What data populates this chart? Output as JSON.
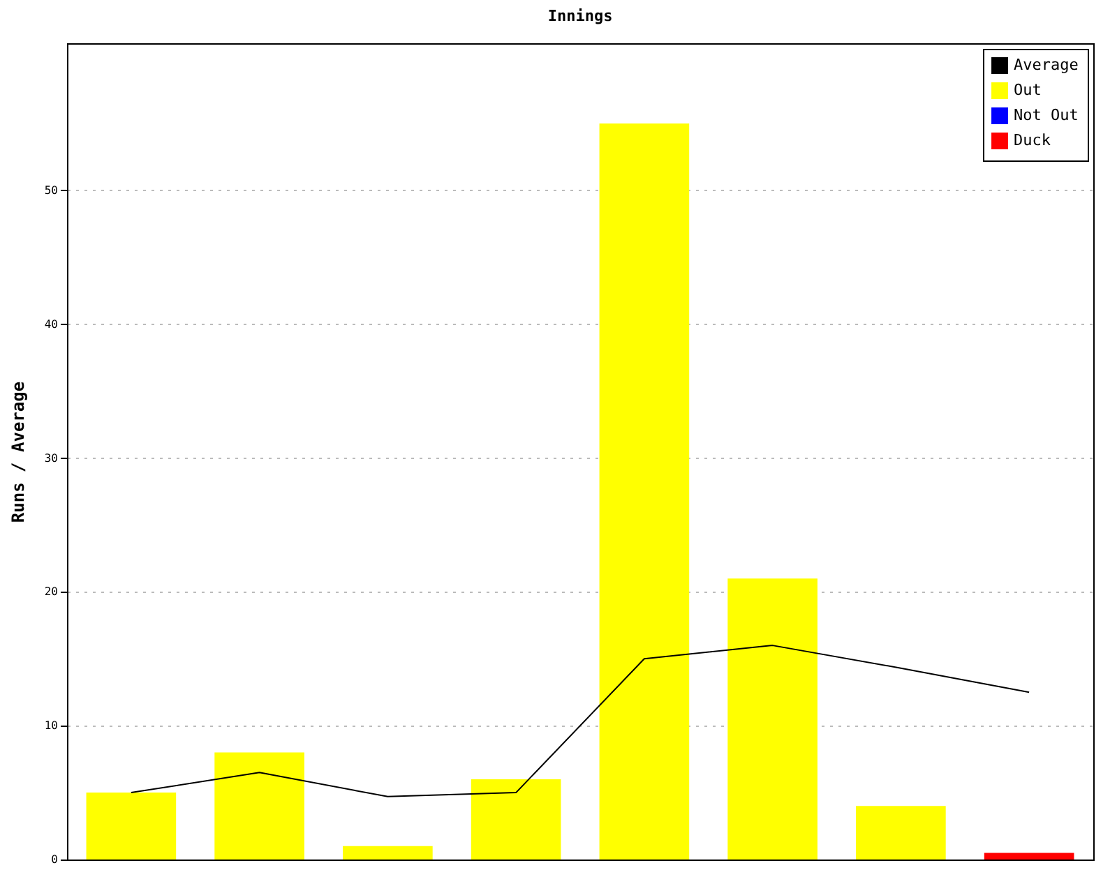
{
  "chart_data": {
    "type": "bar",
    "title": "Innings",
    "ylabel": "Runs / Average",
    "categories": [
      null,
      null,
      null,
      null,
      null,
      null,
      null,
      null
    ],
    "series": [
      {
        "name": "Average",
        "type": "line",
        "color": "#000000",
        "values": [
          5,
          6.5,
          4.7,
          5,
          15,
          16,
          14.3,
          12.5
        ]
      },
      {
        "name": "Out",
        "color": "#ffff00",
        "values": [
          5,
          8,
          1,
          6,
          55,
          21,
          4,
          null
        ]
      },
      {
        "name": "Not Out",
        "color": "#0000ff",
        "values": [
          null,
          null,
          null,
          null,
          null,
          null,
          null,
          null
        ]
      },
      {
        "name": "Duck",
        "color": "#ff0000",
        "values": [
          null,
          null,
          null,
          null,
          null,
          null,
          null,
          0.5
        ]
      }
    ],
    "ylim": [
      0,
      61
    ],
    "yticks": [
      0,
      10,
      20,
      30,
      40,
      50
    ],
    "grid": "y",
    "legend": "top right",
    "tick_labels": "y"
  }
}
